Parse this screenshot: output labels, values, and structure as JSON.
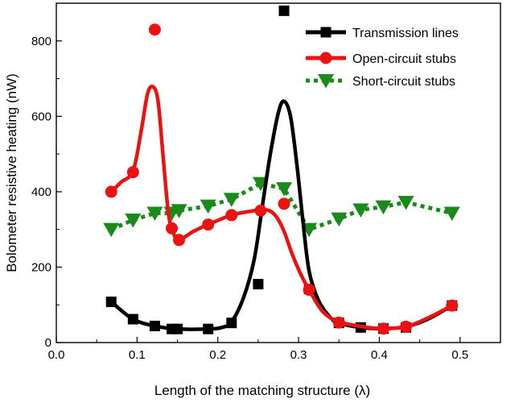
{
  "chart_data": {
    "type": "line",
    "title": "",
    "xlabel": "Length of the matching structure (λ)",
    "ylabel": "Bolometer resistive heating (nW)",
    "xlim": [
      0.0,
      0.55
    ],
    "ylim": [
      0,
      900
    ],
    "xticks": [
      0.0,
      0.1,
      0.2,
      0.3,
      0.4,
      0.5
    ],
    "xtick_labels": [
      "0.0",
      "0.1",
      "0.2",
      "0.3",
      "0.4",
      "0.5"
    ],
    "yticks": [
      0,
      200,
      400,
      600,
      800
    ],
    "ytick_labels": [
      "0",
      "200",
      "400",
      "600",
      "800"
    ],
    "grid": false,
    "legend_position": "top-right",
    "series": [
      {
        "name": "Transmission lines",
        "color": "#000000",
        "marker": "square",
        "line_style": "solid",
        "points": [
          {
            "x": 0.068,
            "y": 108
          },
          {
            "x": 0.095,
            "y": 62
          },
          {
            "x": 0.122,
            "y": 44
          },
          {
            "x": 0.143,
            "y": 36
          },
          {
            "x": 0.15,
            "y": 36
          },
          {
            "x": 0.188,
            "y": 36
          },
          {
            "x": 0.217,
            "y": 52
          },
          {
            "x": 0.25,
            "y": 155
          },
          {
            "x": 0.282,
            "y": 880
          },
          {
            "x": 0.313,
            "y": 142
          },
          {
            "x": 0.35,
            "y": 52
          },
          {
            "x": 0.377,
            "y": 40
          },
          {
            "x": 0.405,
            "y": 37
          },
          {
            "x": 0.433,
            "y": 40
          },
          {
            "x": 0.49,
            "y": 98
          }
        ],
        "fit": [
          {
            "x": 0.068,
            "y": 108
          },
          {
            "x": 0.095,
            "y": 62
          },
          {
            "x": 0.122,
            "y": 44
          },
          {
            "x": 0.15,
            "y": 36
          },
          {
            "x": 0.188,
            "y": 36
          },
          {
            "x": 0.205,
            "y": 40
          },
          {
            "x": 0.217,
            "y": 55
          },
          {
            "x": 0.232,
            "y": 120
          },
          {
            "x": 0.245,
            "y": 220
          },
          {
            "x": 0.255,
            "y": 360
          },
          {
            "x": 0.265,
            "y": 500
          },
          {
            "x": 0.275,
            "y": 610
          },
          {
            "x": 0.282,
            "y": 640
          },
          {
            "x": 0.29,
            "y": 600
          },
          {
            "x": 0.298,
            "y": 470
          },
          {
            "x": 0.305,
            "y": 330
          },
          {
            "x": 0.313,
            "y": 190
          },
          {
            "x": 0.325,
            "y": 110
          },
          {
            "x": 0.34,
            "y": 65
          },
          {
            "x": 0.35,
            "y": 52
          },
          {
            "x": 0.377,
            "y": 40
          },
          {
            "x": 0.405,
            "y": 37
          },
          {
            "x": 0.433,
            "y": 42
          },
          {
            "x": 0.46,
            "y": 62
          },
          {
            "x": 0.49,
            "y": 98
          }
        ]
      },
      {
        "name": "Open-circuit stubs",
        "color": "#ee1111",
        "marker": "circle",
        "line_style": "solid",
        "points": [
          {
            "x": 0.068,
            "y": 400
          },
          {
            "x": 0.095,
            "y": 452
          },
          {
            "x": 0.122,
            "y": 830
          },
          {
            "x": 0.143,
            "y": 303
          },
          {
            "x": 0.152,
            "y": 272
          },
          {
            "x": 0.188,
            "y": 313
          },
          {
            "x": 0.217,
            "y": 338
          },
          {
            "x": 0.253,
            "y": 350
          },
          {
            "x": 0.282,
            "y": 368
          },
          {
            "x": 0.313,
            "y": 140
          },
          {
            "x": 0.35,
            "y": 53
          },
          {
            "x": 0.405,
            "y": 37
          },
          {
            "x": 0.433,
            "y": 42
          },
          {
            "x": 0.49,
            "y": 98
          }
        ],
        "fit": [
          {
            "x": 0.068,
            "y": 400
          },
          {
            "x": 0.08,
            "y": 425
          },
          {
            "x": 0.095,
            "y": 455
          },
          {
            "x": 0.105,
            "y": 560
          },
          {
            "x": 0.113,
            "y": 660
          },
          {
            "x": 0.12,
            "y": 678
          },
          {
            "x": 0.126,
            "y": 640
          },
          {
            "x": 0.132,
            "y": 500
          },
          {
            "x": 0.139,
            "y": 340
          },
          {
            "x": 0.146,
            "y": 285
          },
          {
            "x": 0.152,
            "y": 272
          },
          {
            "x": 0.17,
            "y": 295
          },
          {
            "x": 0.188,
            "y": 313
          },
          {
            "x": 0.217,
            "y": 338
          },
          {
            "x": 0.24,
            "y": 348
          },
          {
            "x": 0.26,
            "y": 352
          },
          {
            "x": 0.272,
            "y": 335
          },
          {
            "x": 0.282,
            "y": 295
          },
          {
            "x": 0.292,
            "y": 235
          },
          {
            "x": 0.303,
            "y": 180
          },
          {
            "x": 0.313,
            "y": 140
          },
          {
            "x": 0.33,
            "y": 82
          },
          {
            "x": 0.35,
            "y": 55
          },
          {
            "x": 0.38,
            "y": 42
          },
          {
            "x": 0.405,
            "y": 37
          },
          {
            "x": 0.433,
            "y": 42
          },
          {
            "x": 0.46,
            "y": 65
          },
          {
            "x": 0.49,
            "y": 98
          }
        ]
      },
      {
        "name": "Short-circuit stubs",
        "color": "#1a8a1a",
        "marker": "triangle-down",
        "line_style": "dotted",
        "points": [
          {
            "x": 0.068,
            "y": 300
          },
          {
            "x": 0.095,
            "y": 325
          },
          {
            "x": 0.122,
            "y": 343
          },
          {
            "x": 0.143,
            "y": 343
          },
          {
            "x": 0.152,
            "y": 350
          },
          {
            "x": 0.188,
            "y": 362
          },
          {
            "x": 0.217,
            "y": 380
          },
          {
            "x": 0.253,
            "y": 422
          },
          {
            "x": 0.282,
            "y": 408
          },
          {
            "x": 0.313,
            "y": 300
          },
          {
            "x": 0.35,
            "y": 328
          },
          {
            "x": 0.377,
            "y": 352
          },
          {
            "x": 0.405,
            "y": 360
          },
          {
            "x": 0.433,
            "y": 372
          },
          {
            "x": 0.49,
            "y": 343
          }
        ]
      }
    ]
  }
}
